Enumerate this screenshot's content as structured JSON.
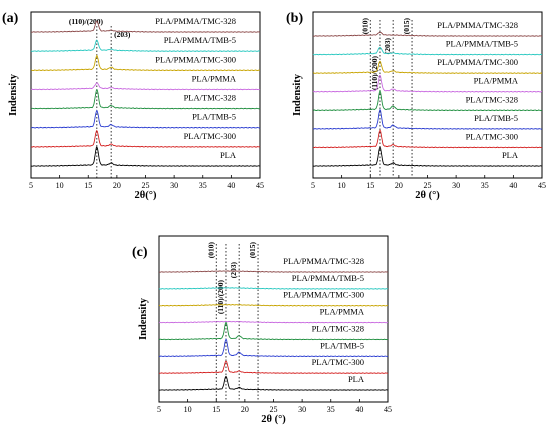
{
  "figure": {
    "palette": [
      "#000000",
      "#d42020",
      "#2a3cd0",
      "#1e8e3e",
      "#c96ae0",
      "#c8a400",
      "#28c8c0",
      "#8c4a4a"
    ]
  },
  "chart_data": [
    {
      "panel": "(a)",
      "type": "line",
      "xlabel": "2θ(°)",
      "ylabel": "Indensity",
      "xlim": [
        5,
        45
      ],
      "xticks": [
        5,
        10,
        15,
        20,
        25,
        30,
        35,
        40,
        45
      ],
      "yticks": "none",
      "annotations": [
        {
          "text": "(110)/(200)",
          "x": 16.5
        },
        {
          "text": "(203)",
          "x": 19.0
        }
      ],
      "ref_lines": [
        16.5,
        19.0
      ],
      "series": [
        {
          "name": "PLA",
          "color": "#000000",
          "peaks": [
            {
              "x": 16.5,
              "h": 1.0
            },
            {
              "x": 19.0,
              "h": 0.12
            }
          ]
        },
        {
          "name": "PLA/TMC-300",
          "color": "#d42020",
          "peaks": [
            {
              "x": 16.5,
              "h": 0.85
            },
            {
              "x": 19.0,
              "h": 0.1
            }
          ]
        },
        {
          "name": "PLA/TMB-5",
          "color": "#2a3cd0",
          "peaks": [
            {
              "x": 16.5,
              "h": 0.9
            },
            {
              "x": 19.0,
              "h": 0.12
            }
          ]
        },
        {
          "name": "PLA/TMC-328",
          "color": "#1e8e3e",
          "peaks": [
            {
              "x": 16.5,
              "h": 1.0
            },
            {
              "x": 19.0,
              "h": 0.12
            }
          ]
        },
        {
          "name": "PLA/PMMA",
          "color": "#c96ae0",
          "peaks": [
            {
              "x": 16.5,
              "h": 0.3
            },
            {
              "x": 19.0,
              "h": 0.05
            }
          ]
        },
        {
          "name": "PLA/PMMA/TMC-300",
          "color": "#c8a400",
          "peaks": [
            {
              "x": 16.5,
              "h": 0.75
            },
            {
              "x": 19.0,
              "h": 0.12
            }
          ]
        },
        {
          "name": "PLA/PMMA/TMB-5",
          "color": "#28c8c0",
          "peaks": [
            {
              "x": 16.5,
              "h": 0.55
            },
            {
              "x": 19.0,
              "h": 0.06
            }
          ]
        },
        {
          "name": "PLA/PMMA/TMC-328",
          "color": "#8c4a4a",
          "peaks": [
            {
              "x": 16.5,
              "h": 0.55
            },
            {
              "x": 19.0,
              "h": 0.05
            }
          ]
        }
      ]
    },
    {
      "panel": "(b)",
      "type": "line",
      "xlabel": "2θ (°)",
      "ylabel": "Indensity",
      "xlim": [
        5,
        45
      ],
      "xticks": [
        5,
        10,
        15,
        20,
        25,
        30,
        35,
        40,
        45
      ],
      "yticks": "none",
      "annotations": [
        {
          "text": "(010)",
          "x": 15.0
        },
        {
          "text": "(110)/(200)",
          "x": 16.7
        },
        {
          "text": "(203)",
          "x": 19.0
        },
        {
          "text": "(015)",
          "x": 22.3
        }
      ],
      "ref_lines": [
        15.0,
        16.7,
        19.0,
        22.3
      ],
      "series": [
        {
          "name": "PLA",
          "color": "#000000",
          "peaks": [
            {
              "x": 16.7,
              "h": 1.0
            },
            {
              "x": 19.0,
              "h": 0.12
            }
          ]
        },
        {
          "name": "PLA/TMC-300",
          "color": "#d42020",
          "peaks": [
            {
              "x": 16.7,
              "h": 0.9
            },
            {
              "x": 19.0,
              "h": 0.1
            }
          ]
        },
        {
          "name": "PLA/TMB-5",
          "color": "#2a3cd0",
          "peaks": [
            {
              "x": 16.7,
              "h": 1.0
            },
            {
              "x": 19.0,
              "h": 0.15
            }
          ]
        },
        {
          "name": "PLA/TMC-328",
          "color": "#1e8e3e",
          "peaks": [
            {
              "x": 16.7,
              "h": 1.0
            },
            {
              "x": 19.0,
              "h": 0.18
            }
          ]
        },
        {
          "name": "PLA/PMMA",
          "color": "#c96ae0",
          "peaks": [
            {
              "x": 16.7,
              "h": 0.85
            },
            {
              "x": 19.0,
              "h": 0.1
            }
          ]
        },
        {
          "name": "PLA/PMMA/TMC-300",
          "color": "#c8a400",
          "peaks": [
            {
              "x": 16.7,
              "h": 0.6
            },
            {
              "x": 19.0,
              "h": 0.08
            }
          ]
        },
        {
          "name": "PLA/PMMA/TMB-5",
          "color": "#28c8c0",
          "peaks": [
            {
              "x": 16.7,
              "h": 0.35
            },
            {
              "x": 19.0,
              "h": 0.04
            }
          ]
        },
        {
          "name": "PLA/PMMA/TMC-328",
          "color": "#8c4a4a",
          "peaks": [
            {
              "x": 16.7,
              "h": 0.15
            }
          ]
        }
      ]
    },
    {
      "panel": "(c)",
      "type": "line",
      "xlabel": "2θ (°)",
      "ylabel": "Indensity",
      "xlim": [
        5,
        45
      ],
      "xticks": [
        5,
        10,
        15,
        20,
        25,
        30,
        35,
        40,
        45
      ],
      "yticks": "none",
      "annotations": [
        {
          "text": "(010)",
          "x": 15.0
        },
        {
          "text": "(110)/(200)",
          "x": 16.7
        },
        {
          "text": "(203)",
          "x": 19.0
        },
        {
          "text": "(015)",
          "x": 22.3
        }
      ],
      "ref_lines": [
        15.0,
        16.7,
        19.0,
        22.3
      ],
      "series": [
        {
          "name": "PLA",
          "color": "#000000",
          "peaks": [
            {
              "x": 16.7,
              "h": 0.8
            },
            {
              "x": 19.0,
              "h": 0.1
            }
          ]
        },
        {
          "name": "PLA/TMC-300",
          "color": "#d42020",
          "peaks": [
            {
              "x": 16.7,
              "h": 0.7
            },
            {
              "x": 19.0,
              "h": 0.08
            }
          ]
        },
        {
          "name": "PLA/TMB-5",
          "color": "#2a3cd0",
          "peaks": [
            {
              "x": 16.7,
              "h": 1.0
            },
            {
              "x": 19.0,
              "h": 0.2
            }
          ]
        },
        {
          "name": "PLA/TMC-328",
          "color": "#1e8e3e",
          "peaks": [
            {
              "x": 16.7,
              "h": 1.0
            },
            {
              "x": 19.0,
              "h": 0.18
            }
          ]
        },
        {
          "name": "PLA/PMMA",
          "color": "#c96ae0",
          "peaks": []
        },
        {
          "name": "PLA/PMMA/TMC-300",
          "color": "#c8a400",
          "peaks": []
        },
        {
          "name": "PLA/PMMA/TMB-5",
          "color": "#28c8c0",
          "peaks": []
        },
        {
          "name": "PLA/PMMA/TMC-328",
          "color": "#8c4a4a",
          "peaks": []
        }
      ]
    }
  ]
}
